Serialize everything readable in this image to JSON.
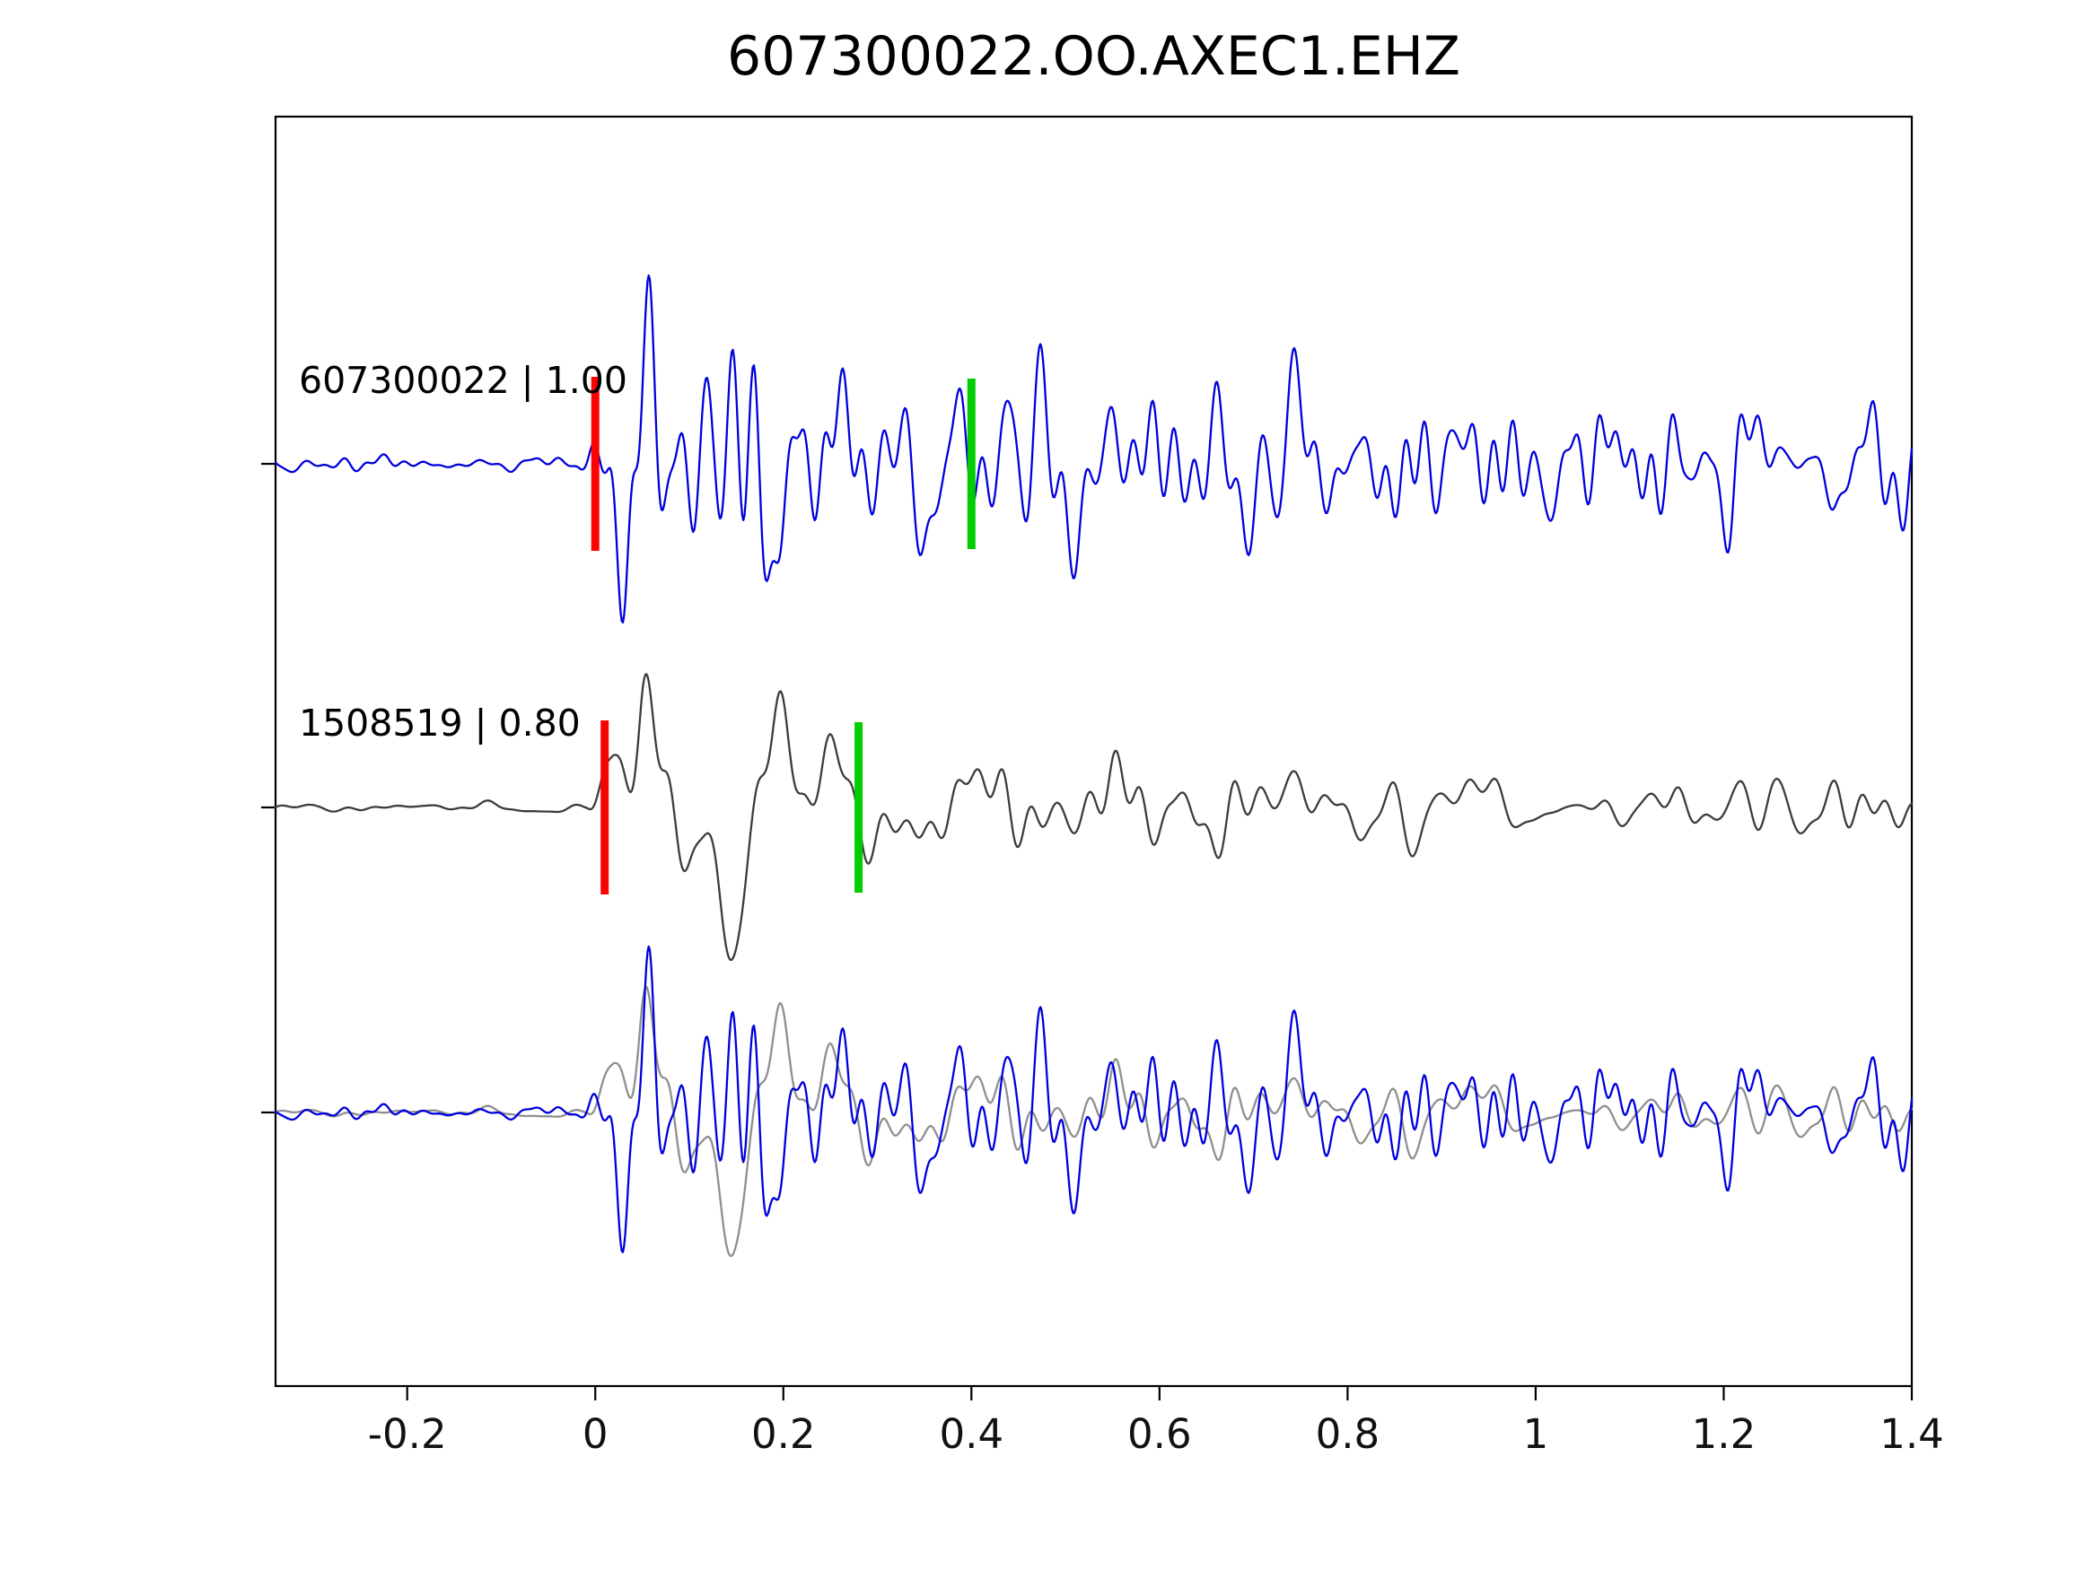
{
  "title": "607300022.OO.AXEC1.EHZ",
  "chart_data": {
    "type": "line",
    "title": "607300022.OO.AXEC1.EHZ",
    "xlabel": "",
    "ylabel": "",
    "grid": false,
    "legend": "none",
    "background": "#ffffff",
    "axis_color": "#000000",
    "x_range": [
      -0.34,
      1.4
    ],
    "x_ticks": [
      {
        "value": -0.2,
        "label": "-0.2"
      },
      {
        "value": 0,
        "label": "0"
      },
      {
        "value": 0.2,
        "label": "0.2"
      },
      {
        "value": 0.4,
        "label": "0.4"
      },
      {
        "value": 0.6,
        "label": "0.6"
      },
      {
        "value": 0.8,
        "label": "0.8"
      },
      {
        "value": 1,
        "label": "1"
      },
      {
        "value": 1.2,
        "label": "1.2"
      },
      {
        "value": 1.4,
        "label": "1.4"
      }
    ],
    "marker_colors": {
      "red": "#ff0000",
      "green": "#00cc00"
    },
    "traces": [
      {
        "id": "607300022",
        "label": "607300022 | 1.00",
        "correlation": "1.00",
        "color": "#0000dd",
        "row": 0,
        "pick_red_t": 0.0,
        "pick_green_t": 0.4
      },
      {
        "id": "1508519",
        "label": "1508519 | 0.80",
        "correlation": "0.80",
        "color": "#3c3c3c",
        "row": 1,
        "pick_red_t": 0.01,
        "pick_green_t": 0.28
      },
      {
        "id": "overlay",
        "row": 2,
        "overlay_blue_color": "#0000dd",
        "overlay_gray_color": "#8f8f8f"
      }
    ],
    "synthesis": {
      "samples": 1400,
      "traces": {
        "blue": {
          "seed": 607322,
          "fmin": 5,
          "fmax": 55,
          "envelope": [
            [
              -0.34,
              0.05
            ],
            [
              -0.02,
              0.05
            ],
            [
              0.01,
              0.25
            ],
            [
              0.045,
              1.0
            ],
            [
              0.1,
              0.8
            ],
            [
              0.17,
              0.9
            ],
            [
              0.25,
              0.7
            ],
            [
              0.35,
              0.72
            ],
            [
              0.45,
              0.6
            ],
            [
              0.55,
              0.62
            ],
            [
              0.65,
              0.5
            ],
            [
              0.8,
              0.45
            ],
            [
              0.95,
              0.4
            ],
            [
              1.1,
              0.36
            ],
            [
              1.25,
              0.38
            ],
            [
              1.4,
              0.33
            ]
          ]
        },
        "gray": {
          "seed": 1508519,
          "fmin": 4,
          "fmax": 42,
          "envelope": [
            [
              -0.34,
              0.035
            ],
            [
              -0.01,
              0.04
            ],
            [
              0.02,
              0.6
            ],
            [
              0.05,
              1.0
            ],
            [
              0.12,
              0.85
            ],
            [
              0.18,
              0.95
            ],
            [
              0.26,
              0.6
            ],
            [
              0.35,
              0.45
            ],
            [
              0.45,
              0.4
            ],
            [
              0.55,
              0.5
            ],
            [
              0.65,
              0.35
            ],
            [
              0.8,
              0.32
            ],
            [
              0.95,
              0.28
            ],
            [
              1.1,
              0.25
            ],
            [
              1.25,
              0.28
            ],
            [
              1.4,
              0.22
            ]
          ]
        }
      }
    }
  }
}
